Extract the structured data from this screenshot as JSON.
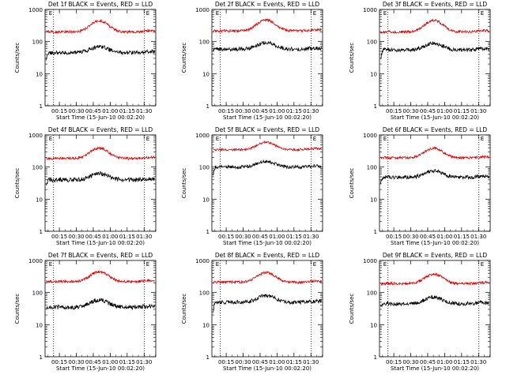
{
  "figure": {
    "background": "#ffffff",
    "axis_color": "#000000",
    "events_color": "#000000",
    "lld_color": "#dd0000"
  },
  "common": {
    "ylabel": "Counts/sec",
    "xlabel": "Start Time (15-Jun-10 00:02:20)",
    "y_ticks": [
      "1",
      "10",
      "100",
      "1000"
    ],
    "x_ticks": [
      "00:15",
      "00:30",
      "00:45",
      "01:00",
      "01:15",
      "01:30"
    ],
    "corner_marks": [
      "E",
      "E"
    ]
  },
  "chart_data": [
    {
      "type": "line",
      "title": "Det 1f BLACK = Events, RED = LLD",
      "x_unit": "minutes after start",
      "xlim": [
        0,
        98
      ],
      "ylim": [
        1,
        1000
      ],
      "y_scale": "log",
      "vlines": [
        7.5,
        88
      ],
      "series": [
        {
          "name": "Events",
          "color": "#000000",
          "base": 45,
          "bump": 1.55,
          "start": 25,
          "noise": 0.06
        },
        {
          "name": "LLD",
          "color": "#dd0000",
          "base": 200,
          "bump": 2.2,
          "start": 210,
          "noise": 0.04
        }
      ]
    },
    {
      "type": "line",
      "title": "Det 2f BLACK = Events, RED = LLD",
      "x_unit": "minutes after start",
      "xlim": [
        0,
        98
      ],
      "ylim": [
        1,
        1000
      ],
      "y_scale": "log",
      "vlines": [
        7.5,
        88
      ],
      "series": [
        {
          "name": "Events",
          "color": "#000000",
          "base": 58,
          "bump": 1.6,
          "start": 50,
          "noise": 0.06
        },
        {
          "name": "LLD",
          "color": "#dd0000",
          "base": 215,
          "bump": 2.2,
          "start": 215,
          "noise": 0.04
        }
      ]
    },
    {
      "type": "line",
      "title": "Det 3f BLACK = Events, RED = LLD",
      "x_unit": "minutes after start",
      "xlim": [
        0,
        98
      ],
      "ylim": [
        1,
        1000
      ],
      "y_scale": "log",
      "vlines": [
        7.5,
        88
      ],
      "series": [
        {
          "name": "Events",
          "color": "#000000",
          "base": 55,
          "bump": 1.6,
          "start": 30,
          "noise": 0.06
        },
        {
          "name": "LLD",
          "color": "#dd0000",
          "base": 200,
          "bump": 2.3,
          "start": 200,
          "noise": 0.04
        }
      ]
    },
    {
      "type": "line",
      "title": "Det 4f BLACK = Events, RED = LLD",
      "x_unit": "minutes after start",
      "xlim": [
        0,
        98
      ],
      "ylim": [
        1,
        1000
      ],
      "y_scale": "log",
      "vlines": [
        7.5,
        88
      ],
      "series": [
        {
          "name": "Events",
          "color": "#000000",
          "base": 40,
          "bump": 1.6,
          "start": 25,
          "noise": 0.07
        },
        {
          "name": "LLD",
          "color": "#dd0000",
          "base": 185,
          "bump": 2.1,
          "start": 180,
          "noise": 0.04
        }
      ]
    },
    {
      "type": "line",
      "title": "Det 5f BLACK = Events, RED = LLD",
      "x_unit": "minutes after start",
      "xlim": [
        0,
        98
      ],
      "ylim": [
        1,
        1000
      ],
      "y_scale": "log",
      "vlines": [
        7.5,
        88
      ],
      "series": [
        {
          "name": "Events",
          "color": "#000000",
          "base": 100,
          "bump": 1.5,
          "start": 60,
          "noise": 0.05
        },
        {
          "name": "LLD",
          "color": "#dd0000",
          "base": 350,
          "bump": 1.7,
          "start": 380,
          "noise": 0.035
        }
      ]
    },
    {
      "type": "line",
      "title": "Det 6f BLACK = Events, RED = LLD",
      "x_unit": "minutes after start",
      "xlim": [
        0,
        98
      ],
      "ylim": [
        1,
        1000
      ],
      "y_scale": "log",
      "vlines": [
        7.5,
        88
      ],
      "series": [
        {
          "name": "Events",
          "color": "#000000",
          "base": 48,
          "bump": 1.6,
          "start": 30,
          "noise": 0.06
        },
        {
          "name": "LLD",
          "color": "#dd0000",
          "base": 195,
          "bump": 2.0,
          "start": 190,
          "noise": 0.04
        }
      ]
    },
    {
      "type": "line",
      "title": "Det 7f BLACK = Events, RED = LLD",
      "x_unit": "minutes after start",
      "xlim": [
        0,
        98
      ],
      "ylim": [
        1,
        1000
      ],
      "y_scale": "log",
      "vlines": [
        7.5,
        88
      ],
      "series": [
        {
          "name": "Events",
          "color": "#000000",
          "base": 35,
          "bump": 1.7,
          "start": 30,
          "noise": 0.07
        },
        {
          "name": "LLD",
          "color": "#dd0000",
          "base": 220,
          "bump": 2.0,
          "start": 220,
          "noise": 0.04
        }
      ]
    },
    {
      "type": "line",
      "title": "Det 8f BLACK = Events, RED = LLD",
      "x_unit": "minutes after start",
      "xlim": [
        0,
        98
      ],
      "ylim": [
        1,
        1000
      ],
      "y_scale": "log",
      "vlines": [
        7.5,
        88
      ],
      "series": [
        {
          "name": "Events",
          "color": "#000000",
          "base": 50,
          "bump": 1.6,
          "start": 25,
          "noise": 0.06
        },
        {
          "name": "LLD",
          "color": "#dd0000",
          "base": 210,
          "bump": 2.0,
          "start": 210,
          "noise": 0.04
        }
      ]
    },
    {
      "type": "line",
      "title": "Det 9f BLACK = Events, RED = LLD",
      "x_unit": "minutes after start",
      "xlim": [
        0,
        98
      ],
      "ylim": [
        1,
        1000
      ],
      "y_scale": "log",
      "vlines": [
        7.5,
        88
      ],
      "series": [
        {
          "name": "Events",
          "color": "#000000",
          "base": 45,
          "bump": 1.6,
          "start": 35,
          "noise": 0.06
        },
        {
          "name": "LLD",
          "color": "#dd0000",
          "base": 190,
          "bump": 2.0,
          "start": 180,
          "noise": 0.04
        }
      ]
    }
  ]
}
